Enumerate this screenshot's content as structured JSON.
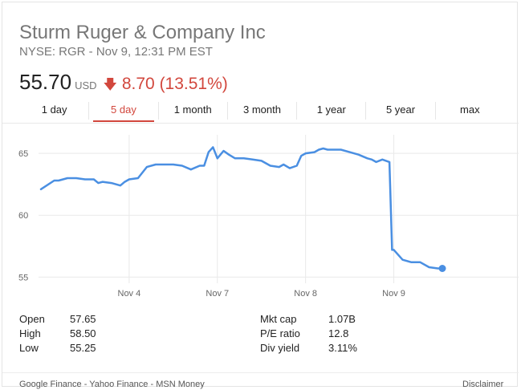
{
  "header": {
    "company": "Sturm Ruger & Company Inc",
    "ticker_line": "NYSE: RGR - Nov 9, 12:31 PM EST",
    "price": "55.70",
    "currency": "USD",
    "change_arrow": "🡇",
    "change": "8.70 (13.51%)",
    "change_color": "#d2473d"
  },
  "tabs": [
    {
      "label": "1 day",
      "active": false
    },
    {
      "label": "5 day",
      "active": true
    },
    {
      "label": "1 month",
      "active": false
    },
    {
      "label": "3 month",
      "active": false
    },
    {
      "label": "1 year",
      "active": false
    },
    {
      "label": "5 year",
      "active": false
    },
    {
      "label": "max",
      "active": false
    }
  ],
  "chart_data": {
    "type": "line",
    "title": "",
    "xlabel": "",
    "ylabel": "",
    "line_color": "#4a8fe2",
    "ylim": [
      54.5,
      66.5
    ],
    "yticks": [
      55,
      60,
      65
    ],
    "xlim": [
      0,
      5.15
    ],
    "xtick_labels": [
      {
        "label": "Nov 4",
        "x": 1
      },
      {
        "label": "Nov 7",
        "x": 2
      },
      {
        "label": "Nov 8",
        "x": 3
      },
      {
        "label": "Nov 9",
        "x": 4
      }
    ],
    "grid": true,
    "x": [
      0,
      0.15,
      0.2,
      0.3,
      0.4,
      0.5,
      0.6,
      0.65,
      0.7,
      0.8,
      0.9,
      0.95,
      1.0,
      1.1,
      1.2,
      1.3,
      1.4,
      1.5,
      1.6,
      1.7,
      1.8,
      1.85,
      1.9,
      1.95,
      2.0,
      2.07,
      2.13,
      2.2,
      2.3,
      2.4,
      2.5,
      2.6,
      2.7,
      2.75,
      2.82,
      2.9,
      2.95,
      3.0,
      3.1,
      3.15,
      3.2,
      3.25,
      3.3,
      3.4,
      3.5,
      3.6,
      3.7,
      3.75,
      3.8,
      3.87,
      3.95,
      3.98,
      4.0,
      4.1,
      4.2,
      4.3,
      4.4,
      4.5,
      4.55
    ],
    "y": [
      62.1,
      62.8,
      62.8,
      63.0,
      63.0,
      62.9,
      62.9,
      62.6,
      62.7,
      62.6,
      62.4,
      62.7,
      62.9,
      63.0,
      63.9,
      64.1,
      64.1,
      64.1,
      64.0,
      63.7,
      64.0,
      64.0,
      65.1,
      65.5,
      64.6,
      65.2,
      64.9,
      64.6,
      64.6,
      64.5,
      64.4,
      64.0,
      63.9,
      64.1,
      63.8,
      64.0,
      64.8,
      65.0,
      65.1,
      65.3,
      65.4,
      65.3,
      65.3,
      65.3,
      65.1,
      64.9,
      64.6,
      64.5,
      64.3,
      64.5,
      64.3,
      57.2,
      57.2,
      56.4,
      56.2,
      56.2,
      55.8,
      55.7,
      55.7
    ]
  },
  "stats": {
    "left": [
      {
        "label": "Open",
        "value": "57.65"
      },
      {
        "label": "High",
        "value": "58.50"
      },
      {
        "label": "Low",
        "value": "55.25"
      }
    ],
    "right": [
      {
        "label": "Mkt cap",
        "value": "1.07B"
      },
      {
        "label": "P/E ratio",
        "value": "12.8"
      },
      {
        "label": "Div yield",
        "value": "3.11%"
      }
    ]
  },
  "footer": {
    "sources": "Google Finance - Yahoo Finance - MSN Money",
    "disclaimer": "Disclaimer"
  }
}
